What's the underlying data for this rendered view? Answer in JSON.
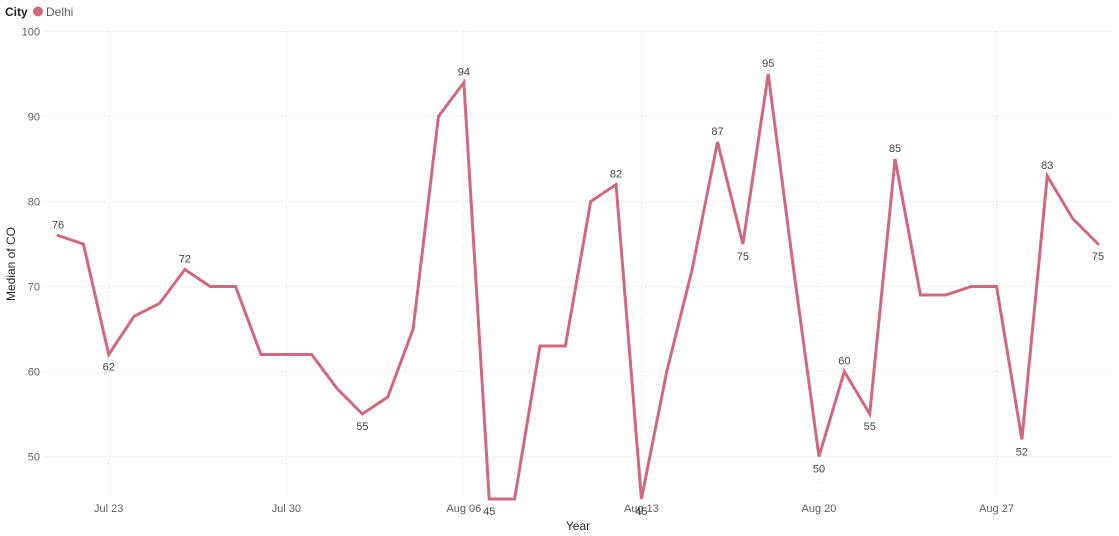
{
  "legend": {
    "title": "City",
    "series_name": "Delhi"
  },
  "colors": {
    "series": "#D0687F"
  },
  "chart_data": {
    "type": "line",
    "xlabel": "Year",
    "ylabel": "Median of CO",
    "ylim": [
      45,
      100
    ],
    "yticks": [
      50,
      60,
      70,
      80,
      90,
      100
    ],
    "xticks": [
      {
        "label": "Jul 23",
        "date": "2023-07-23"
      },
      {
        "label": "Jul 30",
        "date": "2023-07-30"
      },
      {
        "label": "Aug 06",
        "date": "2023-08-06"
      },
      {
        "label": "Aug 13",
        "date": "2023-08-13"
      },
      {
        "label": "Aug 20",
        "date": "2023-08-20"
      },
      {
        "label": "Aug 27",
        "date": "2023-08-27"
      }
    ],
    "grid": true,
    "legend_position": "top-left",
    "series": [
      {
        "name": "Delhi",
        "points": [
          {
            "x": "2023-07-21",
            "y": 76,
            "label": "76"
          },
          {
            "x": "2023-07-22",
            "y": 75
          },
          {
            "x": "2023-07-23",
            "y": 62,
            "label": "62"
          },
          {
            "x": "2023-07-24",
            "y": 66.5
          },
          {
            "x": "2023-07-25",
            "y": 68
          },
          {
            "x": "2023-07-26",
            "y": 72,
            "label": "72"
          },
          {
            "x": "2023-07-27",
            "y": 70
          },
          {
            "x": "2023-07-28",
            "y": 70
          },
          {
            "x": "2023-07-29",
            "y": 62
          },
          {
            "x": "2023-07-30",
            "y": 62
          },
          {
            "x": "2023-07-31",
            "y": 62
          },
          {
            "x": "2023-08-01",
            "y": 58
          },
          {
            "x": "2023-08-02",
            "y": 55,
            "label": "55"
          },
          {
            "x": "2023-08-03",
            "y": 57
          },
          {
            "x": "2023-08-04",
            "y": 65
          },
          {
            "x": "2023-08-05",
            "y": 90
          },
          {
            "x": "2023-08-06",
            "y": 94,
            "label": "94"
          },
          {
            "x": "2023-08-07",
            "y": 45,
            "label": "45"
          },
          {
            "x": "2023-08-08",
            "y": 45
          },
          {
            "x": "2023-08-09",
            "y": 63
          },
          {
            "x": "2023-08-10",
            "y": 63
          },
          {
            "x": "2023-08-11",
            "y": 80
          },
          {
            "x": "2023-08-12",
            "y": 82,
            "label": "82"
          },
          {
            "x": "2023-08-13",
            "y": 45,
            "label": "45"
          },
          {
            "x": "2023-08-14",
            "y": 60
          },
          {
            "x": "2023-08-15",
            "y": 72
          },
          {
            "x": "2023-08-16",
            "y": 87,
            "label": "87"
          },
          {
            "x": "2023-08-17",
            "y": 75,
            "label": "75"
          },
          {
            "x": "2023-08-18",
            "y": 95,
            "label": "95"
          },
          {
            "x": "2023-08-19",
            "y": 72
          },
          {
            "x": "2023-08-20",
            "y": 50,
            "label": "50"
          },
          {
            "x": "2023-08-21",
            "y": 60,
            "label": "60"
          },
          {
            "x": "2023-08-22",
            "y": 55,
            "label": "55"
          },
          {
            "x": "2023-08-23",
            "y": 85,
            "label": "85"
          },
          {
            "x": "2023-08-24",
            "y": 69
          },
          {
            "x": "2023-08-25",
            "y": 69
          },
          {
            "x": "2023-08-26",
            "y": 70
          },
          {
            "x": "2023-08-27",
            "y": 70
          },
          {
            "x": "2023-08-28",
            "y": 52,
            "label": "52"
          },
          {
            "x": "2023-08-29",
            "y": 83,
            "label": "83"
          },
          {
            "x": "2023-08-30",
            "y": 78
          },
          {
            "x": "2023-08-31",
            "y": 75,
            "label": "75"
          }
        ]
      }
    ]
  }
}
